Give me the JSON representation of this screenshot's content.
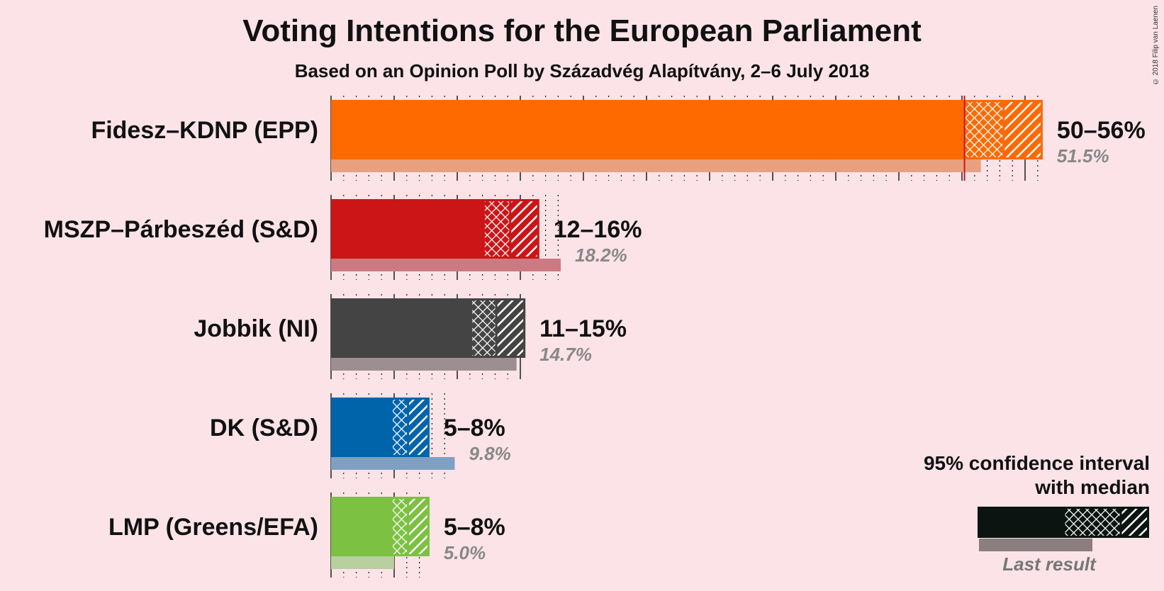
{
  "title": "Voting Intentions for the European Parliament",
  "subtitle": "Based on an Opinion Poll by Századvég Alapítvány, 2–6 July 2018",
  "copyright": "© 2018 Filip van Laenen",
  "legend": {
    "line1": "95% confidence interval",
    "line2": "with median",
    "last_result": "Last result"
  },
  "chart_data": {
    "type": "bar",
    "orientation": "horizontal",
    "unit": "%",
    "series": [
      {
        "name": "Fidesz–KDNP (EPP)",
        "color": "#ff6a00",
        "last_color": "#e8a07f",
        "ci_low": 50.2,
        "median": 53.3,
        "ci_high": 56.4,
        "range_label": "50–56%",
        "last_result": 51.5,
        "last_label": "51.5%",
        "majority_line": 50.2
      },
      {
        "name": "MSZP–Párbeszéd (S&D)",
        "color": "#cc1517",
        "last_color": "#cc7a82",
        "ci_low": 12.1,
        "median": 14.2,
        "ci_high": 16.5,
        "range_label": "12–16%",
        "last_result": 18.2,
        "last_label": "18.2%"
      },
      {
        "name": "Jobbik (NI)",
        "color": "#444444",
        "last_color": "#9d8e92",
        "ci_low": 11.1,
        "median": 13.1,
        "ci_high": 15.4,
        "range_label": "11–15%",
        "last_result": 14.7,
        "last_label": "14.7%"
      },
      {
        "name": "DK (S&D)",
        "color": "#0064ab",
        "last_color": "#7fa0c2",
        "ci_low": 4.8,
        "median": 6.1,
        "ci_high": 7.8,
        "range_label": "5–8%",
        "last_result": 9.8,
        "last_label": "9.8%"
      },
      {
        "name": "LMP (Greens/EFA)",
        "color": "#7cc142",
        "last_color": "#b8cfa0",
        "ci_low": 4.8,
        "median": 6.1,
        "ci_high": 7.8,
        "range_label": "5–8%",
        "last_result": 5.0,
        "last_label": "5.0%"
      }
    ],
    "xlim": [
      0,
      56.4
    ],
    "grid": "dotted every 1%, solid every 5%"
  }
}
